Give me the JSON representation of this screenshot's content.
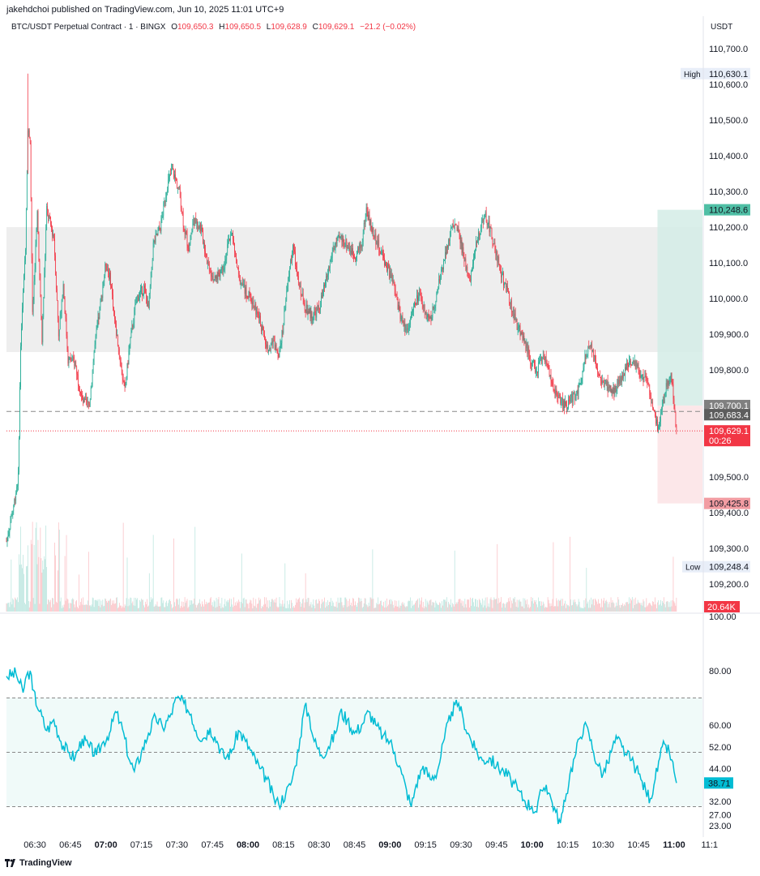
{
  "header": {
    "published_line": "jakehdchoi published on TradingView.com, Jun 10, 2025 11:01 UTC+9"
  },
  "symbol": {
    "name": "BTC/USDT Perpetual Contract · 1 · BINGX",
    "o_label": "O",
    "o": "109,650.3",
    "h_label": "H",
    "h": "109,650.5",
    "l_label": "L",
    "l": "109,628.9",
    "c_label": "C",
    "c": "109,629.1",
    "change": "−21.2 (−0.02%)"
  },
  "currency": "USDT",
  "footer": {
    "brand": "TradingView"
  },
  "colors": {
    "up": "#22ab94",
    "down": "#f23645",
    "rsi": "#00bcd4",
    "zone": "#eeeeee",
    "target": "#d3ece6",
    "stop": "#fbe3e5"
  },
  "chart_data": [
    {
      "type": "candlestick",
      "symbol": "BTC/USDT Perpetual Contract",
      "interval": "1",
      "exchange": "BINGX",
      "ylim": [
        109200,
        110700
      ],
      "price_ticks": [
        "110,700.0",
        "110,600.0",
        "110,500.0",
        "110,400.0",
        "110,300.0",
        "110,200.0",
        "110,100.0",
        "110,000.0",
        "109,900.0",
        "109,800.0",
        "109,500.0",
        "109,400.0",
        "109,300.0",
        "109,200.0"
      ],
      "time_ticks": [
        {
          "t": "06:30",
          "bold": false
        },
        {
          "t": "06:45",
          "bold": false
        },
        {
          "t": "07:00",
          "bold": true
        },
        {
          "t": "07:15",
          "bold": false
        },
        {
          "t": "07:30",
          "bold": false
        },
        {
          "t": "07:45",
          "bold": false
        },
        {
          "t": "08:00",
          "bold": true
        },
        {
          "t": "08:15",
          "bold": false
        },
        {
          "t": "08:30",
          "bold": false
        },
        {
          "t": "08:45",
          "bold": false
        },
        {
          "t": "09:00",
          "bold": true
        },
        {
          "t": "09:15",
          "bold": false
        },
        {
          "t": "09:30",
          "bold": false
        },
        {
          "t": "09:45",
          "bold": false
        },
        {
          "t": "10:00",
          "bold": true
        },
        {
          "t": "10:15",
          "bold": false
        },
        {
          "t": "10:30",
          "bold": false
        },
        {
          "t": "10:45",
          "bold": false
        },
        {
          "t": "11:00",
          "bold": true
        },
        {
          "t": "11:1",
          "bold": false
        }
      ],
      "time_range": [
        "06:18",
        "11:12"
      ],
      "high_marker": {
        "label": "High",
        "value": 110630.1,
        "text": "110,630.1"
      },
      "low_marker": {
        "label": "Low",
        "value": 109248.4,
        "text": "109,248.4"
      },
      "price_labels": [
        {
          "value": 110248.6,
          "text": "110,248.6",
          "kind": "target"
        },
        {
          "value": 109700.1,
          "text": "109,700.1",
          "kind": "entry"
        },
        {
          "value": 109683.4,
          "text": "109,683.4",
          "kind": "level"
        },
        {
          "value": 109629.1,
          "text": "109,629.1",
          "kind": "last",
          "countdown": "00:26"
        },
        {
          "value": 109425.8,
          "text": "109,425.8",
          "kind": "stop"
        }
      ],
      "zone": {
        "from": 109850,
        "to": 110200
      },
      "position": {
        "start": "10:53",
        "end": "11:12",
        "entry": 109700.1,
        "target": 110248.6,
        "stop": 109425.8
      },
      "dashed_level": 109683.4,
      "volume_label": "20.64K",
      "path_keypoints": [
        [
          "06:18",
          109320
        ],
        [
          "06:21",
          109420
        ],
        [
          "06:23",
          109500
        ],
        [
          "06:24",
          109870
        ],
        [
          "06:26",
          110150
        ],
        [
          "06:27",
          110470
        ],
        [
          "06:28",
          110450
        ],
        [
          "06:29",
          109950
        ],
        [
          "06:31",
          110240
        ],
        [
          "06:33",
          109880
        ],
        [
          "06:35",
          110250
        ],
        [
          "06:38",
          110170
        ],
        [
          "06:40",
          109900
        ],
        [
          "06:42",
          110040
        ],
        [
          "06:44",
          109830
        ],
        [
          "06:47",
          109820
        ],
        [
          "06:50",
          109710
        ],
        [
          "06:53",
          109700
        ],
        [
          "06:55",
          109850
        ],
        [
          "06:58",
          110000
        ],
        [
          "07:00",
          110100
        ],
        [
          "07:02",
          110050
        ],
        [
          "07:04",
          109920
        ],
        [
          "07:06",
          109830
        ],
        [
          "07:08",
          109740
        ],
        [
          "07:10",
          109870
        ],
        [
          "07:13",
          110000
        ],
        [
          "07:16",
          110030
        ],
        [
          "07:18",
          109970
        ],
        [
          "07:20",
          110150
        ],
        [
          "07:23",
          110200
        ],
        [
          "07:26",
          110320
        ],
        [
          "07:28",
          110360
        ],
        [
          "07:31",
          110300
        ],
        [
          "07:33",
          110200
        ],
        [
          "07:35",
          110140
        ],
        [
          "07:37",
          110220
        ],
        [
          "07:40",
          110200
        ],
        [
          "07:43",
          110100
        ],
        [
          "07:46",
          110050
        ],
        [
          "07:50",
          110100
        ],
        [
          "07:53",
          110190
        ],
        [
          "07:56",
          110060
        ],
        [
          "07:59",
          110020
        ],
        [
          "08:02",
          109990
        ],
        [
          "08:05",
          109940
        ],
        [
          "08:08",
          109860
        ],
        [
          "08:10",
          109880
        ],
        [
          "08:13",
          109850
        ],
        [
          "08:15",
          109930
        ],
        [
          "08:17",
          110050
        ],
        [
          "08:19",
          110150
        ],
        [
          "08:21",
          110050
        ],
        [
          "08:24",
          109980
        ],
        [
          "08:27",
          109950
        ],
        [
          "08:30",
          109970
        ],
        [
          "08:33",
          110050
        ],
        [
          "08:36",
          110140
        ],
        [
          "08:39",
          110170
        ],
        [
          "08:42",
          110150
        ],
        [
          "08:45",
          110120
        ],
        [
          "08:48",
          110150
        ],
        [
          "08:50",
          110250
        ],
        [
          "08:52",
          110200
        ],
        [
          "08:55",
          110150
        ],
        [
          "08:58",
          110100
        ],
        [
          "09:01",
          110050
        ],
        [
          "09:04",
          109960
        ],
        [
          "09:07",
          109910
        ],
        [
          "09:09",
          109950
        ],
        [
          "09:12",
          110010
        ],
        [
          "09:15",
          109960
        ],
        [
          "09:17",
          109940
        ],
        [
          "09:19",
          109990
        ],
        [
          "09:21",
          110050
        ],
        [
          "09:24",
          110150
        ],
        [
          "09:27",
          110210
        ],
        [
          "09:29",
          110180
        ],
        [
          "09:32",
          110090
        ],
        [
          "09:34",
          110060
        ],
        [
          "09:37",
          110170
        ],
        [
          "09:40",
          110240
        ],
        [
          "09:42",
          110200
        ],
        [
          "09:45",
          110120
        ],
        [
          "09:48",
          110050
        ],
        [
          "09:51",
          109980
        ],
        [
          "09:54",
          109920
        ],
        [
          "09:57",
          109880
        ],
        [
          "10:00",
          109820
        ],
        [
          "10:02",
          109800
        ],
        [
          "10:05",
          109840
        ],
        [
          "10:08",
          109770
        ],
        [
          "10:11",
          109720
        ],
        [
          "10:14",
          109700
        ],
        [
          "10:17",
          109720
        ],
        [
          "10:20",
          109750
        ],
        [
          "10:22",
          109830
        ],
        [
          "10:25",
          109870
        ],
        [
          "10:28",
          109780
        ],
        [
          "10:31",
          109760
        ],
        [
          "10:34",
          109740
        ],
        [
          "10:37",
          109770
        ],
        [
          "10:40",
          109810
        ],
        [
          "10:43",
          109820
        ],
        [
          "10:46",
          109790
        ],
        [
          "10:49",
          109760
        ],
        [
          "10:51",
          109700
        ],
        [
          "10:53",
          109640
        ],
        [
          "10:55",
          109700
        ],
        [
          "10:57",
          109760
        ],
        [
          "10:59",
          109780
        ],
        [
          "11:00",
          109700
        ],
        [
          "11:01",
          109629.1
        ]
      ]
    },
    {
      "type": "line",
      "name": "RSI",
      "ylim": [
        20,
        100
      ],
      "ticks": [
        "100.00",
        "80.00",
        "60.00",
        "52.00",
        "44.00",
        "32.00",
        "27.00",
        "23.00"
      ],
      "tick_values": [
        100,
        80,
        60,
        52,
        44,
        32,
        27,
        23
      ],
      "levels": [
        70,
        50,
        30
      ],
      "last_value": 38.71,
      "last_text": "38.71",
      "keypoints": [
        [
          "06:18",
          78
        ],
        [
          "06:22",
          79
        ],
        [
          "06:25",
          72
        ],
        [
          "06:26",
          77
        ],
        [
          "06:28",
          80
        ],
        [
          "06:29",
          73
        ],
        [
          "06:32",
          65
        ],
        [
          "06:35",
          58
        ],
        [
          "06:38",
          62
        ],
        [
          "06:41",
          54
        ],
        [
          "06:44",
          50
        ],
        [
          "06:47",
          48
        ],
        [
          "06:50",
          55
        ],
        [
          "06:53",
          52
        ],
        [
          "06:56",
          49
        ],
        [
          "06:59",
          54
        ],
        [
          "07:02",
          58
        ],
        [
          "07:04",
          65
        ],
        [
          "07:06",
          61
        ],
        [
          "07:08",
          55
        ],
        [
          "07:10",
          47
        ],
        [
          "07:12",
          43
        ],
        [
          "07:15",
          50
        ],
        [
          "07:18",
          57
        ],
        [
          "07:21",
          63
        ],
        [
          "07:24",
          59
        ],
        [
          "07:27",
          63
        ],
        [
          "07:30",
          70
        ],
        [
          "07:33",
          68
        ],
        [
          "07:36",
          64
        ],
        [
          "07:38",
          58
        ],
        [
          "07:41",
          55
        ],
        [
          "07:44",
          59
        ],
        [
          "07:47",
          54
        ],
        [
          "07:50",
          48
        ],
        [
          "07:53",
          50
        ],
        [
          "07:56",
          58
        ],
        [
          "07:59",
          54
        ],
        [
          "08:02",
          49
        ],
        [
          "08:05",
          44
        ],
        [
          "08:08",
          40
        ],
        [
          "08:11",
          33
        ],
        [
          "08:13",
          31
        ],
        [
          "08:16",
          35
        ],
        [
          "08:18",
          38
        ],
        [
          "08:20",
          45
        ],
        [
          "08:22",
          55
        ],
        [
          "08:24",
          67
        ],
        [
          "08:26",
          63
        ],
        [
          "08:28",
          54
        ],
        [
          "08:31",
          49
        ],
        [
          "08:34",
          52
        ],
        [
          "08:37",
          57
        ],
        [
          "08:39",
          65
        ],
        [
          "08:42",
          62
        ],
        [
          "08:45",
          57
        ],
        [
          "08:48",
          60
        ],
        [
          "08:51",
          65
        ],
        [
          "08:54",
          60
        ],
        [
          "08:57",
          56
        ],
        [
          "09:00",
          54
        ],
        [
          "09:02",
          50
        ],
        [
          "09:05",
          42
        ],
        [
          "09:07",
          36
        ],
        [
          "09:09",
          30
        ],
        [
          "09:11",
          38
        ],
        [
          "09:14",
          45
        ],
        [
          "09:17",
          40
        ],
        [
          "09:20",
          43
        ],
        [
          "09:23",
          55
        ],
        [
          "09:26",
          65
        ],
        [
          "09:29",
          68
        ],
        [
          "09:31",
          62
        ],
        [
          "09:33",
          57
        ],
        [
          "09:36",
          51
        ],
        [
          "09:39",
          47
        ],
        [
          "09:42",
          48
        ],
        [
          "09:45",
          45
        ],
        [
          "09:48",
          43
        ],
        [
          "09:51",
          40
        ],
        [
          "09:54",
          36
        ],
        [
          "09:57",
          32
        ],
        [
          "10:00",
          30
        ],
        [
          "10:02",
          28
        ],
        [
          "10:04",
          36
        ],
        [
          "10:06",
          38
        ],
        [
          "10:08",
          33
        ],
        [
          "10:10",
          28
        ],
        [
          "10:12",
          24
        ],
        [
          "10:14",
          32
        ],
        [
          "10:16",
          42
        ],
        [
          "10:18",
          48
        ],
        [
          "10:20",
          55
        ],
        [
          "10:22",
          60
        ],
        [
          "10:24",
          57
        ],
        [
          "10:26",
          50
        ],
        [
          "10:28",
          45
        ],
        [
          "10:30",
          42
        ],
        [
          "10:32",
          46
        ],
        [
          "10:34",
          52
        ],
        [
          "10:36",
          55
        ],
        [
          "10:38",
          52
        ],
        [
          "10:40",
          49
        ],
        [
          "10:42",
          47
        ],
        [
          "10:44",
          44
        ],
        [
          "10:46",
          40
        ],
        [
          "10:48",
          36
        ],
        [
          "10:50",
          33
        ],
        [
          "10:52",
          40
        ],
        [
          "10:54",
          48
        ],
        [
          "10:56",
          53
        ],
        [
          "10:58",
          50
        ],
        [
          "11:00",
          43
        ],
        [
          "11:01",
          38.71
        ]
      ]
    }
  ]
}
